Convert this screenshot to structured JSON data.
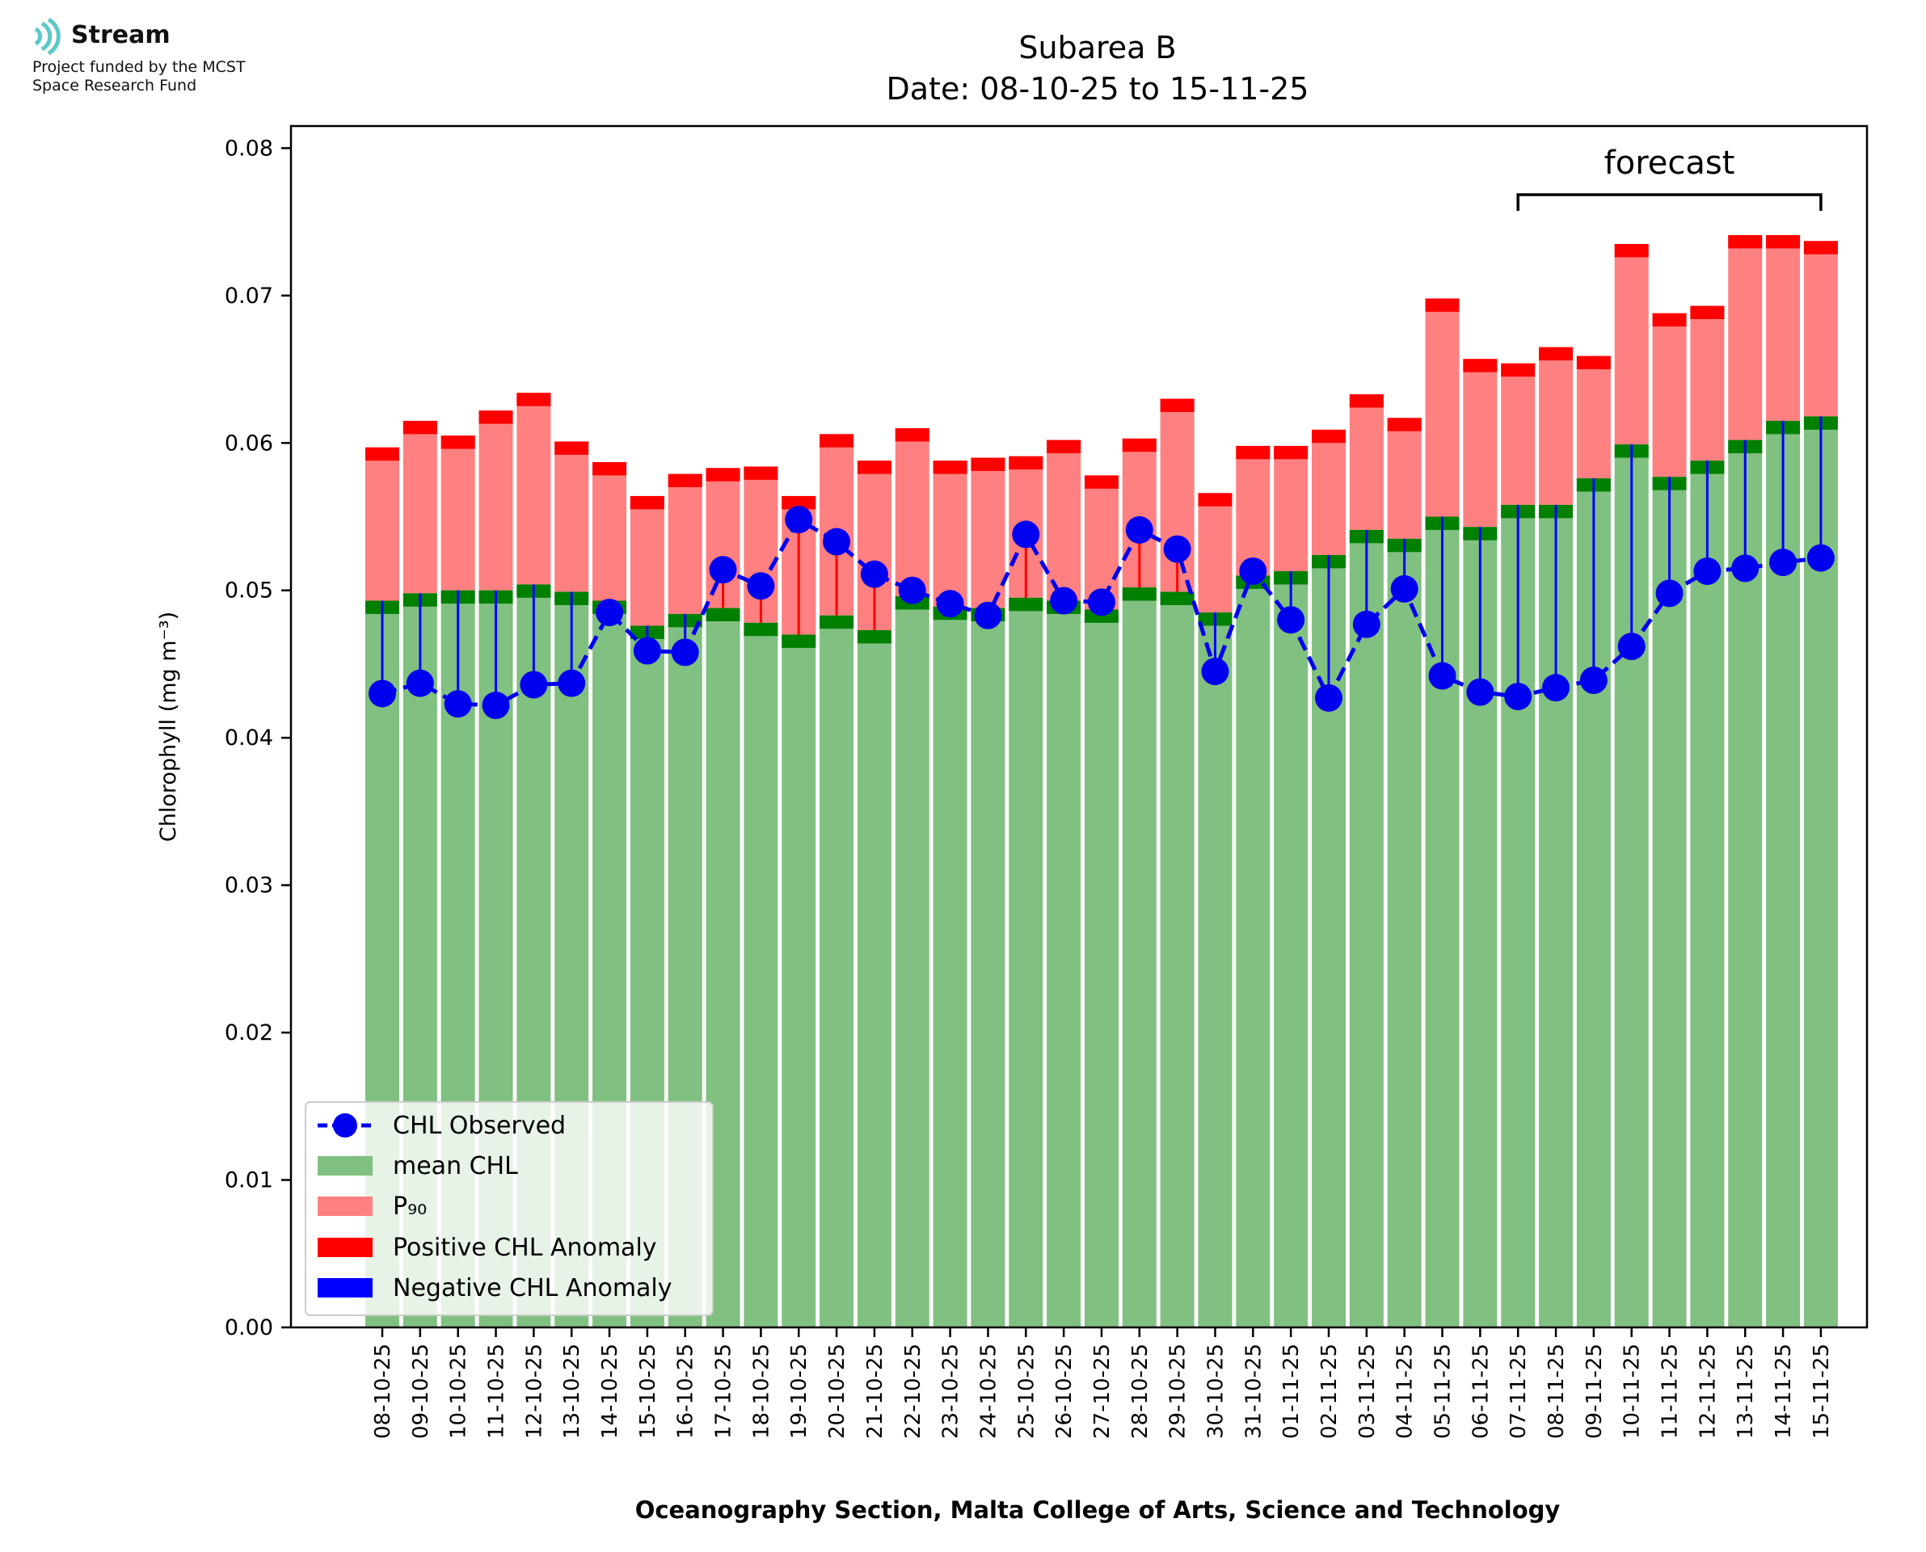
{
  "logo": {
    "name": "Stream",
    "fund_line1": "Project funded by the MCST",
    "fund_line2": "Space Research Fund",
    "icon": "wave-signal-icon",
    "icon_color": "#5bc8c8"
  },
  "chart_data": {
    "type": "bar",
    "title": "Subarea B",
    "subtitle": "Date: 08-10-25 to 15-11-25",
    "xlabel": "Oceanography Section, Malta College of Arts, Science and Technology",
    "ylabel": "Chlorophyll (mg m⁻³)",
    "ylim": [
      0,
      0.0815
    ],
    "yticks": [
      "0.00",
      "0.01",
      "0.02",
      "0.03",
      "0.04",
      "0.05",
      "0.06",
      "0.07",
      "0.08"
    ],
    "annotation": "forecast",
    "forecast_start": "07-11-25",
    "forecast_end": "15-11-25",
    "legend_position": "lower-left",
    "legend": [
      "CHL Observed",
      "mean CHL",
      "P₉₀",
      "Positive CHL Anomaly",
      "Negative CHL Anomaly"
    ],
    "colors": {
      "observed": "#0000ee",
      "mean": "#80c080",
      "mean_cap": "#008000",
      "p90": "#ff8080",
      "p90_cap": "#ff0000",
      "positive_anomaly": "#ff0000",
      "negative_anomaly": "#0000ff"
    },
    "categories": [
      "08-10-25",
      "09-10-25",
      "10-10-25",
      "11-10-25",
      "12-10-25",
      "13-10-25",
      "14-10-25",
      "15-10-25",
      "16-10-25",
      "17-10-25",
      "18-10-25",
      "19-10-25",
      "20-10-25",
      "21-10-25",
      "22-10-25",
      "23-10-25",
      "24-10-25",
      "25-10-25",
      "26-10-25",
      "27-10-25",
      "28-10-25",
      "29-10-25",
      "30-10-25",
      "31-10-25",
      "01-11-25",
      "02-11-25",
      "03-11-25",
      "04-11-25",
      "05-11-25",
      "06-11-25",
      "07-11-25",
      "08-11-25",
      "09-11-25",
      "10-11-25",
      "11-11-25",
      "12-11-25",
      "13-11-25",
      "14-11-25",
      "15-11-25"
    ],
    "series": [
      {
        "name": "mean CHL",
        "values": [
          0.0493,
          0.0498,
          0.05,
          0.05,
          0.0504,
          0.0499,
          0.0493,
          0.0476,
          0.0484,
          0.0488,
          0.0478,
          0.047,
          0.0483,
          0.0473,
          0.0496,
          0.0489,
          0.0488,
          0.0495,
          0.0493,
          0.0487,
          0.0502,
          0.0499,
          0.0485,
          0.051,
          0.0513,
          0.0524,
          0.0541,
          0.0535,
          0.055,
          0.0543,
          0.0558,
          0.0558,
          0.0576,
          0.0599,
          0.0577,
          0.0588,
          0.0602,
          0.0615,
          0.0618
        ]
      },
      {
        "name": "P₉₀",
        "values": [
          0.0597,
          0.0615,
          0.0605,
          0.0622,
          0.0634,
          0.0601,
          0.0587,
          0.0564,
          0.0579,
          0.0583,
          0.0584,
          0.0564,
          0.0606,
          0.0588,
          0.061,
          0.0588,
          0.059,
          0.0591,
          0.0602,
          0.0578,
          0.0603,
          0.063,
          0.0566,
          0.0598,
          0.0598,
          0.0609,
          0.0633,
          0.0617,
          0.0698,
          0.0657,
          0.0654,
          0.0665,
          0.0659,
          0.0735,
          0.0688,
          0.0693,
          0.0741,
          0.0741,
          0.0737
        ]
      },
      {
        "name": "CHL Observed",
        "values": [
          0.043,
          0.0437,
          0.0423,
          0.0422,
          0.0436,
          0.0437,
          0.0485,
          0.0459,
          0.0458,
          0.0514,
          0.0503,
          0.0548,
          0.0533,
          0.0511,
          0.05,
          0.0491,
          0.0483,
          0.0538,
          0.0493,
          0.0492,
          0.0541,
          0.0528,
          0.0445,
          0.0513,
          0.048,
          0.0427,
          0.0477,
          0.0501,
          0.0442,
          0.0431,
          0.0428,
          0.0434,
          0.0439,
          0.0462,
          0.0498,
          0.0513,
          0.0515,
          0.0519,
          0.0522
        ]
      }
    ]
  }
}
